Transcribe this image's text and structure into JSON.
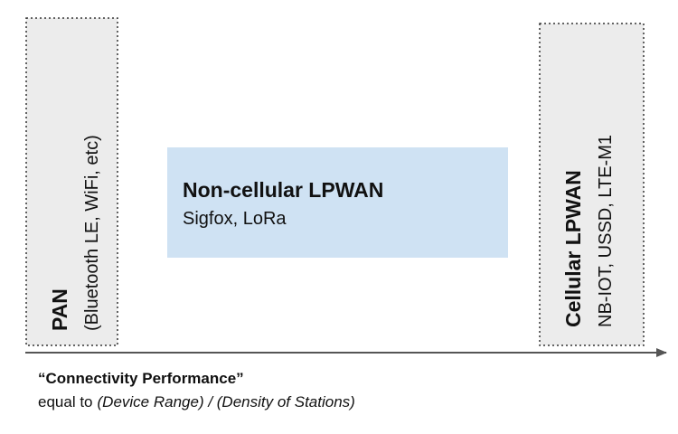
{
  "nodes": [
    {
      "title": "PAN",
      "subtitle": "(Bluetooth LE, WiFi, etc)"
    },
    {
      "title": "Non-cellular LPWAN",
      "subtitle": "Sigfox, LoRa"
    },
    {
      "title": "Cellular LPWAN",
      "subtitle": "NB-IOT, USSD, LTE-M1"
    }
  ],
  "axis": {
    "label": "“Connectivity Performance”",
    "definition_prefix": "equal to",
    "definition_formula": "(Device Range) / (Density of Stations)"
  }
}
